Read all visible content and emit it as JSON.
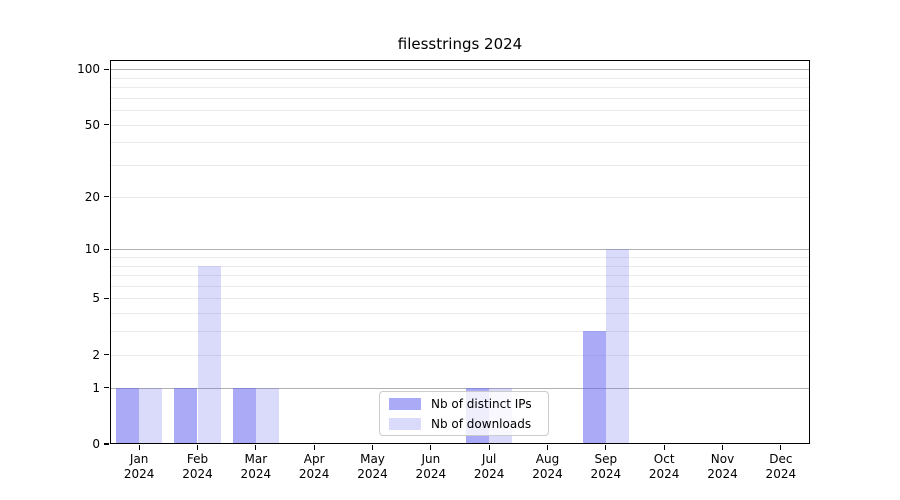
{
  "chart_data": {
    "type": "bar",
    "title": "filesstrings 2024",
    "categories": [
      "Jan",
      "Feb",
      "Mar",
      "Apr",
      "May",
      "Jun",
      "Jul",
      "Aug",
      "Sep",
      "Oct",
      "Nov",
      "Dec"
    ],
    "category_year": "2024",
    "series": [
      {
        "name": "Nb of distinct IPs",
        "color": "#6464ee",
        "alpha": 0.55,
        "values": [
          1,
          1,
          1,
          0,
          0,
          0,
          1,
          0,
          3,
          0,
          0,
          0
        ]
      },
      {
        "name": "Nb of downloads",
        "color": "#6464ee",
        "alpha": 0.24,
        "values": [
          1,
          8,
          1,
          0,
          0,
          0,
          1,
          0,
          10,
          0,
          0,
          0
        ]
      }
    ],
    "xlabel": "",
    "ylabel": "",
    "y_scale": "log1p",
    "ylim": [
      0,
      112
    ],
    "y_ticks": [
      0,
      1,
      2,
      5,
      10,
      20,
      50,
      100
    ],
    "y_major_grid": [
      1,
      10,
      100
    ],
    "y_minor_grid": [
      2,
      3,
      4,
      5,
      6,
      7,
      8,
      9,
      20,
      30,
      40,
      50,
      60,
      70,
      80,
      90
    ],
    "grid": "on",
    "legend_position": "lower-center",
    "colors": {
      "major_grid": "#b0b0b0",
      "minor_grid": "#ebebeb",
      "spine": "#000000",
      "text": "#000000",
      "background": "#ffffff"
    }
  }
}
